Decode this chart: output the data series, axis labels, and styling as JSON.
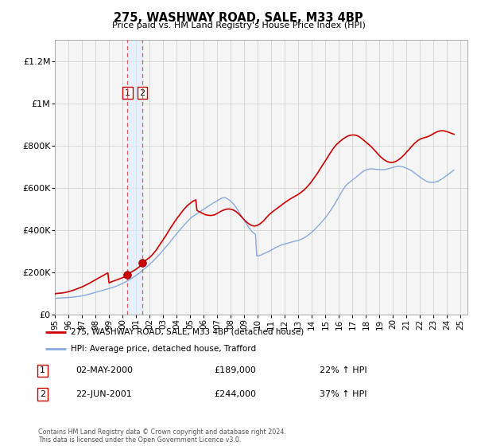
{
  "title": "275, WASHWAY ROAD, SALE, M33 4BP",
  "subtitle": "Price paid vs. HM Land Registry's House Price Index (HPI)",
  "ylim": [
    0,
    1300000
  ],
  "yticks": [
    0,
    200000,
    400000,
    600000,
    800000,
    1000000,
    1200000
  ],
  "ytick_labels": [
    "£0",
    "£200K",
    "£400K",
    "£600K",
    "£800K",
    "£1M",
    "£1.2M"
  ],
  "sale_color": "#cc0000",
  "hpi_color": "#88aadd",
  "dashed_color": "#dd4444",
  "transaction1": {
    "label": "1",
    "date": "02-MAY-2000",
    "price": 189000,
    "pct": "22%",
    "x_year": 2000.37
  },
  "transaction2": {
    "label": "2",
    "date": "22-JUN-2001",
    "price": 244000,
    "pct": "37%",
    "x_year": 2001.47
  },
  "legend_sale_label": "275, WASHWAY ROAD, SALE, M33 4BP (detached house)",
  "legend_hpi_label": "HPI: Average price, detached house, Trafford",
  "footer": "Contains HM Land Registry data © Crown copyright and database right 2024.\nThis data is licensed under the Open Government Licence v3.0.",
  "x_start": 1995.0,
  "x_end": 2025.5,
  "hpi_data_x": [
    1995.0,
    1995.08,
    1995.17,
    1995.25,
    1995.33,
    1995.42,
    1995.5,
    1995.58,
    1995.67,
    1995.75,
    1995.83,
    1995.92,
    1996.0,
    1996.08,
    1996.17,
    1996.25,
    1996.33,
    1996.42,
    1996.5,
    1996.58,
    1996.67,
    1996.75,
    1996.83,
    1996.92,
    1997.0,
    1997.08,
    1997.17,
    1997.25,
    1997.33,
    1997.42,
    1997.5,
    1997.58,
    1997.67,
    1997.75,
    1997.83,
    1997.92,
    1998.0,
    1998.08,
    1998.17,
    1998.25,
    1998.33,
    1998.42,
    1998.5,
    1998.58,
    1998.67,
    1998.75,
    1998.83,
    1998.92,
    1999.0,
    1999.08,
    1999.17,
    1999.25,
    1999.33,
    1999.42,
    1999.5,
    1999.58,
    1999.67,
    1999.75,
    1999.83,
    1999.92,
    2000.0,
    2000.08,
    2000.17,
    2000.25,
    2000.33,
    2000.42,
    2000.5,
    2000.58,
    2000.67,
    2000.75,
    2000.83,
    2000.92,
    2001.0,
    2001.08,
    2001.17,
    2001.25,
    2001.33,
    2001.42,
    2001.5,
    2001.58,
    2001.67,
    2001.75,
    2001.83,
    2001.92,
    2002.0,
    2002.08,
    2002.17,
    2002.25,
    2002.33,
    2002.42,
    2002.5,
    2002.58,
    2002.67,
    2002.75,
    2002.83,
    2002.92,
    2003.0,
    2003.08,
    2003.17,
    2003.25,
    2003.33,
    2003.42,
    2003.5,
    2003.58,
    2003.67,
    2003.75,
    2003.83,
    2003.92,
    2004.0,
    2004.08,
    2004.17,
    2004.25,
    2004.33,
    2004.42,
    2004.5,
    2004.58,
    2004.67,
    2004.75,
    2004.83,
    2004.92,
    2005.0,
    2005.08,
    2005.17,
    2005.25,
    2005.33,
    2005.42,
    2005.5,
    2005.58,
    2005.67,
    2005.75,
    2005.83,
    2005.92,
    2006.0,
    2006.08,
    2006.17,
    2006.25,
    2006.33,
    2006.42,
    2006.5,
    2006.58,
    2006.67,
    2006.75,
    2006.83,
    2006.92,
    2007.0,
    2007.08,
    2007.17,
    2007.25,
    2007.33,
    2007.42,
    2007.5,
    2007.58,
    2007.67,
    2007.75,
    2007.83,
    2007.92,
    2008.0,
    2008.08,
    2008.17,
    2008.25,
    2008.33,
    2008.42,
    2008.5,
    2008.58,
    2008.67,
    2008.75,
    2008.83,
    2008.92,
    2009.0,
    2009.08,
    2009.17,
    2009.25,
    2009.33,
    2009.42,
    2009.5,
    2009.58,
    2009.67,
    2009.75,
    2009.83,
    2009.92,
    2010.0,
    2010.08,
    2010.17,
    2010.25,
    2010.33,
    2010.42,
    2010.5,
    2010.58,
    2010.67,
    2010.75,
    2010.83,
    2010.92,
    2011.0,
    2011.08,
    2011.17,
    2011.25,
    2011.33,
    2011.42,
    2011.5,
    2011.58,
    2011.67,
    2011.75,
    2011.83,
    2011.92,
    2012.0,
    2012.08,
    2012.17,
    2012.25,
    2012.33,
    2012.42,
    2012.5,
    2012.58,
    2012.67,
    2012.75,
    2012.83,
    2012.92,
    2013.0,
    2013.08,
    2013.17,
    2013.25,
    2013.33,
    2013.42,
    2013.5,
    2013.58,
    2013.67,
    2013.75,
    2013.83,
    2013.92,
    2014.0,
    2014.08,
    2014.17,
    2014.25,
    2014.33,
    2014.42,
    2014.5,
    2014.58,
    2014.67,
    2014.75,
    2014.83,
    2014.92,
    2015.0,
    2015.08,
    2015.17,
    2015.25,
    2015.33,
    2015.42,
    2015.5,
    2015.58,
    2015.67,
    2015.75,
    2015.83,
    2015.92,
    2016.0,
    2016.08,
    2016.17,
    2016.25,
    2016.33,
    2016.42,
    2016.5,
    2016.58,
    2016.67,
    2016.75,
    2016.83,
    2016.92,
    2017.0,
    2017.08,
    2017.17,
    2017.25,
    2017.33,
    2017.42,
    2017.5,
    2017.58,
    2017.67,
    2017.75,
    2017.83,
    2017.92,
    2018.0,
    2018.08,
    2018.17,
    2018.25,
    2018.33,
    2018.42,
    2018.5,
    2018.58,
    2018.67,
    2018.75,
    2018.83,
    2018.92,
    2019.0,
    2019.08,
    2019.17,
    2019.25,
    2019.33,
    2019.42,
    2019.5,
    2019.58,
    2019.67,
    2019.75,
    2019.83,
    2019.92,
    2020.0,
    2020.08,
    2020.17,
    2020.25,
    2020.33,
    2020.42,
    2020.5,
    2020.58,
    2020.67,
    2020.75,
    2020.83,
    2020.92,
    2021.0,
    2021.08,
    2021.17,
    2021.25,
    2021.33,
    2021.42,
    2021.5,
    2021.58,
    2021.67,
    2021.75,
    2021.83,
    2021.92,
    2022.0,
    2022.08,
    2022.17,
    2022.25,
    2022.33,
    2022.42,
    2022.5,
    2022.58,
    2022.67,
    2022.75,
    2022.83,
    2022.92,
    2023.0,
    2023.08,
    2023.17,
    2023.25,
    2023.33,
    2023.42,
    2023.5,
    2023.58,
    2023.67,
    2023.75,
    2023.83,
    2023.92,
    2024.0,
    2024.08,
    2024.17,
    2024.25,
    2024.33,
    2024.42,
    2024.5
  ],
  "hpi_data_y": [
    76000,
    76500,
    77000,
    77200,
    77500,
    77800,
    78000,
    78300,
    78700,
    79000,
    79400,
    79800,
    80200,
    80600,
    81000,
    81500,
    82000,
    82600,
    83200,
    83900,
    84600,
    85300,
    86100,
    87000,
    88000,
    89000,
    90200,
    91500,
    92800,
    94200,
    95600,
    97000,
    98500,
    100000,
    101500,
    103000,
    104500,
    106000,
    107500,
    109000,
    110500,
    112000,
    113500,
    115000,
    116500,
    118000,
    119500,
    121000,
    122500,
    124000,
    125600,
    127300,
    129100,
    131000,
    133000,
    135000,
    137200,
    139500,
    141900,
    144400,
    147000,
    149600,
    152300,
    155100,
    158000,
    161000,
    164100,
    167300,
    170600,
    174000,
    177500,
    181100,
    184800,
    188600,
    192500,
    196500,
    200600,
    204800,
    209100,
    213500,
    218000,
    222600,
    227300,
    232100,
    237000,
    242000,
    247100,
    252300,
    257600,
    263000,
    268500,
    274100,
    279800,
    285600,
    291500,
    297500,
    303600,
    309800,
    316100,
    322500,
    329000,
    335600,
    342300,
    349100,
    356000,
    362400,
    368900,
    375500,
    382200,
    388500,
    394800,
    401100,
    407500,
    413500,
    419500,
    425500,
    431500,
    437000,
    442500,
    448000,
    453500,
    459000,
    463000,
    467000,
    470500,
    474000,
    477500,
    481000,
    484500,
    488000,
    491500,
    495000,
    498500,
    502000,
    505500,
    509000,
    512500,
    516000,
    519500,
    523000,
    526500,
    530000,
    533000,
    536000,
    539000,
    542000,
    545000,
    548000,
    551000,
    553000,
    554000,
    553000,
    551000,
    548000,
    545000,
    541000,
    537000,
    532000,
    526000,
    520000,
    513000,
    505000,
    497000,
    489000,
    480500,
    472000,
    463500,
    455000,
    446500,
    438000,
    429500,
    421000,
    412500,
    405000,
    398000,
    392000,
    387000,
    383000,
    380000,
    278000,
    277000,
    278000,
    280000,
    282000,
    284500,
    287000,
    289500,
    292000,
    294500,
    297000,
    299500,
    302000,
    305000,
    308000,
    311000,
    314000,
    317000,
    319500,
    322000,
    324500,
    327000,
    329000,
    331000,
    332500,
    334000,
    335500,
    337000,
    338500,
    340000,
    341500,
    343000,
    344500,
    346000,
    347000,
    348000,
    349500,
    351000,
    353000,
    355000,
    357500,
    360000,
    363000,
    366000,
    369500,
    373000,
    377000,
    381000,
    385500,
    390000,
    395000,
    400000,
    405500,
    411000,
    416500,
    422000,
    428000,
    434000,
    440000,
    446000,
    452500,
    459000,
    466000,
    473000,
    480500,
    488000,
    496000,
    504000,
    512500,
    521000,
    530000,
    539000,
    548500,
    558000,
    567500,
    577000,
    586500,
    595000,
    602000,
    609000,
    615000,
    620500,
    625000,
    629000,
    633000,
    637000,
    641000,
    645000,
    649500,
    654000,
    658500,
    663000,
    667500,
    672000,
    676000,
    679500,
    682500,
    685000,
    687000,
    688500,
    689500,
    690000,
    690000,
    689500,
    689000,
    688500,
    688000,
    687500,
    687000,
    686500,
    686000,
    686000,
    686000,
    686500,
    687000,
    688000,
    689500,
    691000,
    692500,
    694000,
    695500,
    697000,
    698500,
    700000,
    701000,
    702000,
    702500,
    702500,
    702000,
    700500,
    699000,
    697000,
    695000,
    693000,
    690500,
    688000,
    685000,
    682000,
    678500,
    675000,
    671000,
    667000,
    663000,
    659000,
    655000,
    651000,
    647000,
    643000,
    639500,
    636000,
    633000,
    630500,
    628500,
    627000,
    626000,
    625500,
    625500,
    626000,
    627000,
    628500,
    630500,
    632500,
    635000,
    638000,
    641000,
    644500,
    648000,
    652000,
    656000,
    660000,
    664000,
    668000,
    672000,
    676000,
    680000,
    684000,
    688000,
    692000,
    695500,
    699000,
    702000,
    705000,
    707500,
    710000,
    712000,
    714000,
    716000
  ],
  "sale_data_x": [
    1995.0,
    1995.08,
    1995.17,
    1995.25,
    1995.33,
    1995.42,
    1995.5,
    1995.58,
    1995.67,
    1995.75,
    1995.83,
    1995.92,
    1996.0,
    1996.08,
    1996.17,
    1996.25,
    1996.33,
    1996.42,
    1996.5,
    1996.58,
    1996.67,
    1996.75,
    1996.83,
    1996.92,
    1997.0,
    1997.08,
    1997.17,
    1997.25,
    1997.33,
    1997.42,
    1997.5,
    1997.58,
    1997.67,
    1997.75,
    1997.83,
    1997.92,
    1998.0,
    1998.08,
    1998.17,
    1998.25,
    1998.33,
    1998.42,
    1998.5,
    1998.58,
    1998.67,
    1998.75,
    1998.83,
    1998.92,
    1999.0,
    1999.08,
    1999.17,
    1999.25,
    1999.33,
    1999.42,
    1999.5,
    1999.58,
    1999.67,
    1999.75,
    1999.83,
    1999.92,
    2000.0,
    2000.08,
    2000.17,
    2000.25,
    2000.37,
    2000.42,
    2000.5,
    2000.58,
    2000.67,
    2000.75,
    2000.83,
    2000.92,
    2001.0,
    2001.08,
    2001.17,
    2001.25,
    2001.33,
    2001.42,
    2001.47,
    2001.5,
    2001.58,
    2001.67,
    2001.75,
    2001.83,
    2001.92,
    2002.0,
    2002.08,
    2002.17,
    2002.25,
    2002.33,
    2002.42,
    2002.5,
    2002.58,
    2002.67,
    2002.75,
    2002.83,
    2002.92,
    2003.0,
    2003.08,
    2003.17,
    2003.25,
    2003.33,
    2003.42,
    2003.5,
    2003.58,
    2003.67,
    2003.75,
    2003.83,
    2003.92,
    2004.0,
    2004.08,
    2004.17,
    2004.25,
    2004.33,
    2004.42,
    2004.5,
    2004.58,
    2004.67,
    2004.75,
    2004.83,
    2004.92,
    2005.0,
    2005.08,
    2005.17,
    2005.25,
    2005.33,
    2005.42,
    2005.5,
    2005.58,
    2005.67,
    2005.75,
    2005.83,
    2005.92,
    2006.0,
    2006.08,
    2006.17,
    2006.25,
    2006.33,
    2006.42,
    2006.5,
    2006.58,
    2006.67,
    2006.75,
    2006.83,
    2006.92,
    2007.0,
    2007.08,
    2007.17,
    2007.25,
    2007.33,
    2007.42,
    2007.5,
    2007.58,
    2007.67,
    2007.75,
    2007.83,
    2007.92,
    2008.0,
    2008.08,
    2008.17,
    2008.25,
    2008.33,
    2008.42,
    2008.5,
    2008.58,
    2008.67,
    2008.75,
    2008.83,
    2008.92,
    2009.0,
    2009.08,
    2009.17,
    2009.25,
    2009.33,
    2009.42,
    2009.5,
    2009.58,
    2009.67,
    2009.75,
    2009.83,
    2009.92,
    2010.0,
    2010.08,
    2010.17,
    2010.25,
    2010.33,
    2010.42,
    2010.5,
    2010.58,
    2010.67,
    2010.75,
    2010.83,
    2010.92,
    2011.0,
    2011.08,
    2011.17,
    2011.25,
    2011.33,
    2011.42,
    2011.5,
    2011.58,
    2011.67,
    2011.75,
    2011.83,
    2011.92,
    2012.0,
    2012.08,
    2012.17,
    2012.25,
    2012.33,
    2012.42,
    2012.5,
    2012.58,
    2012.67,
    2012.75,
    2012.83,
    2012.92,
    2013.0,
    2013.08,
    2013.17,
    2013.25,
    2013.33,
    2013.42,
    2013.5,
    2013.58,
    2013.67,
    2013.75,
    2013.83,
    2013.92,
    2014.0,
    2014.08,
    2014.17,
    2014.25,
    2014.33,
    2014.42,
    2014.5,
    2014.58,
    2014.67,
    2014.75,
    2014.83,
    2014.92,
    2015.0,
    2015.08,
    2015.17,
    2015.25,
    2015.33,
    2015.42,
    2015.5,
    2015.58,
    2015.67,
    2015.75,
    2015.83,
    2015.92,
    2016.0,
    2016.08,
    2016.17,
    2016.25,
    2016.33,
    2016.42,
    2016.5,
    2016.58,
    2016.67,
    2016.75,
    2016.83,
    2016.92,
    2017.0,
    2017.08,
    2017.17,
    2017.25,
    2017.33,
    2017.42,
    2017.5,
    2017.58,
    2017.67,
    2017.75,
    2017.83,
    2017.92,
    2018.0,
    2018.08,
    2018.17,
    2018.25,
    2018.33,
    2018.42,
    2018.5,
    2018.58,
    2018.67,
    2018.75,
    2018.83,
    2018.92,
    2019.0,
    2019.08,
    2019.17,
    2019.25,
    2019.33,
    2019.42,
    2019.5,
    2019.58,
    2019.67,
    2019.75,
    2019.83,
    2019.92,
    2020.0,
    2020.08,
    2020.17,
    2020.25,
    2020.33,
    2020.42,
    2020.5,
    2020.58,
    2020.67,
    2020.75,
    2020.83,
    2020.92,
    2021.0,
    2021.08,
    2021.17,
    2021.25,
    2021.33,
    2021.42,
    2021.5,
    2021.58,
    2021.67,
    2021.75,
    2021.83,
    2021.92,
    2022.0,
    2022.08,
    2022.17,
    2022.25,
    2022.33,
    2022.42,
    2022.5,
    2022.58,
    2022.67,
    2022.75,
    2022.83,
    2022.92,
    2023.0,
    2023.08,
    2023.17,
    2023.25,
    2023.33,
    2023.42,
    2023.5,
    2023.58,
    2023.67,
    2023.75,
    2023.83,
    2023.92,
    2024.0,
    2024.08,
    2024.17,
    2024.25,
    2024.33,
    2024.42,
    2024.5
  ],
  "sale_data_y": [
    98000,
    99000,
    99500,
    100000,
    100500,
    101000,
    101500,
    102000,
    103000,
    104000,
    105000,
    106500,
    108000,
    109500,
    111000,
    112500,
    114000,
    116000,
    118000,
    120000,
    122000,
    124000,
    126000,
    128000,
    130000,
    132500,
    135000,
    137500,
    140000,
    143000,
    146000,
    149000,
    152000,
    155000,
    158000,
    161000,
    164000,
    167000,
    170000,
    173000,
    176000,
    179000,
    182000,
    185000,
    188000,
    191000,
    194000,
    197000,
    150000,
    152000,
    154000,
    156000,
    158000,
    160000,
    162000,
    164000,
    166000,
    168000,
    170000,
    172000,
    174000,
    176000,
    178000,
    180500,
    189000,
    192000,
    195000,
    198000,
    201000,
    204000,
    207000,
    210500,
    214000,
    218000,
    222000,
    226000,
    230000,
    234000,
    244000,
    246000,
    250000,
    254000,
    258000,
    262000,
    266000,
    270000,
    275000,
    280000,
    286000,
    292000,
    299000,
    306000,
    314000,
    322000,
    330000,
    338000,
    346000,
    354000,
    362000,
    370000,
    378500,
    387000,
    396000,
    405000,
    413000,
    421000,
    429000,
    437000,
    445000,
    453000,
    460000,
    467000,
    474000,
    481000,
    488000,
    495000,
    501000,
    507000,
    513000,
    518000,
    522500,
    527000,
    531000,
    534500,
    538000,
    540500,
    543000,
    494000,
    490000,
    487000,
    484000,
    481500,
    479000,
    476500,
    474000,
    472000,
    471000,
    470000,
    469500,
    469000,
    469500,
    470000,
    471000,
    473000,
    476000,
    479000,
    482000,
    485000,
    488000,
    490500,
    493000,
    495000,
    497000,
    498500,
    499500,
    500000,
    499500,
    499000,
    497500,
    495500,
    493000,
    490000,
    486500,
    482000,
    477000,
    471500,
    466000,
    460000,
    454000,
    448000,
    443000,
    438000,
    433500,
    429500,
    426000,
    423000,
    421000,
    419500,
    419000,
    419500,
    421000,
    423500,
    426000,
    429500,
    433500,
    438000,
    443000,
    449000,
    455000,
    461000,
    467000,
    472500,
    477500,
    482000,
    486000,
    490000,
    494000,
    498000,
    502000,
    506000,
    510000,
    514000,
    518000,
    522000,
    526000,
    530000,
    534000,
    537500,
    541000,
    544500,
    548000,
    551000,
    554000,
    557000,
    560000,
    563000,
    566000,
    569500,
    573000,
    577000,
    581000,
    585500,
    590000,
    595000,
    600500,
    606000,
    612000,
    618500,
    625000,
    632000,
    639000,
    646500,
    654000,
    662000,
    670000,
    678500,
    687000,
    695500,
    704000,
    712000,
    720000,
    728500,
    737000,
    745500,
    754000,
    762500,
    771000,
    779000,
    786500,
    793500,
    800000,
    806000,
    811000,
    816000,
    820500,
    825000,
    829000,
    833000,
    836500,
    840000,
    843000,
    845500,
    847500,
    849000,
    850000,
    850500,
    850500,
    850000,
    849000,
    847500,
    845000,
    842000,
    838500,
    834500,
    830000,
    825500,
    821000,
    816500,
    812000,
    807500,
    803000,
    798000,
    793000,
    787500,
    782000,
    776000,
    770000,
    764000,
    758000,
    752000,
    747000,
    742000,
    737500,
    733500,
    730000,
    727000,
    724500,
    722500,
    721000,
    720500,
    720500,
    721000,
    722500,
    724500,
    727000,
    730000,
    733500,
    737500,
    742000,
    747000,
    752000,
    757500,
    763000,
    769000,
    775000,
    781000,
    787000,
    793000,
    799000,
    805000,
    810500,
    815500,
    820000,
    824000,
    827500,
    830500,
    833000,
    835000,
    836500,
    838000,
    839500,
    841000,
    843000,
    845500,
    848000,
    851000,
    854000,
    857000,
    860000,
    863000,
    865500,
    867500,
    869000,
    870000,
    870500,
    870500,
    870000,
    869000,
    867500,
    866000,
    864000,
    862000,
    860000,
    858000,
    856000,
    854000,
    852000,
    850000,
    848000,
    846000,
    844000,
    842000,
    840500,
    839500,
    839000,
    839000,
    839500,
    840000
  ],
  "x_year_ticks": [
    1995,
    1996,
    1997,
    1998,
    1999,
    2000,
    2001,
    2002,
    2003,
    2004,
    2005,
    2006,
    2007,
    2008,
    2009,
    2010,
    2011,
    2012,
    2013,
    2014,
    2015,
    2016,
    2017,
    2018,
    2019,
    2020,
    2021,
    2022,
    2023,
    2024,
    2025
  ],
  "hatch_start": 2024.5
}
